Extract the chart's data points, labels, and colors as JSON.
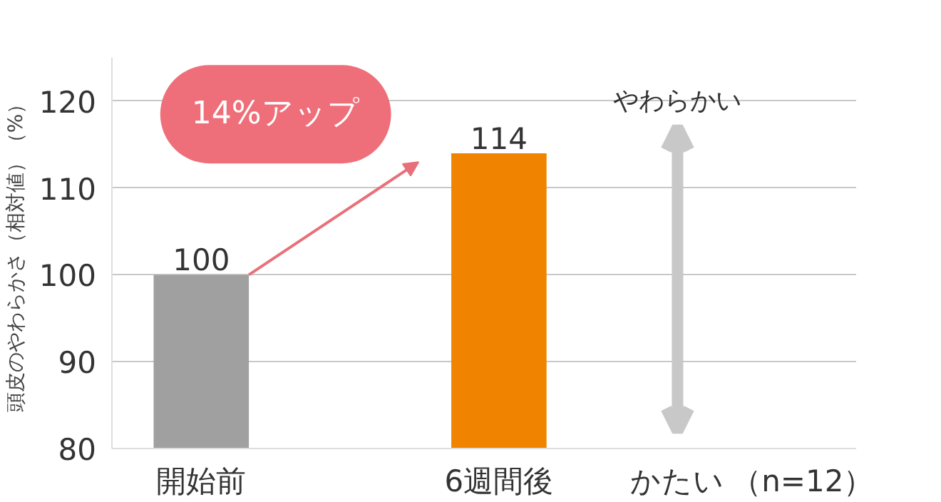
{
  "chart_data": {
    "type": "bar",
    "ylabel": "頭皮のやわらかさ（相対値）（%）",
    "categories": [
      "開始前",
      "6週間後"
    ],
    "values": [
      100,
      114
    ],
    "colors": [
      "#a0a0a0",
      "#f08300"
    ],
    "ylim": [
      80,
      125
    ],
    "yticks": [
      80,
      90,
      100,
      110,
      120
    ],
    "grid": "y",
    "data_labels": true,
    "annotations": [
      "14%アップ",
      "やわらかい",
      "かたい",
      "（n=12）"
    ]
  }
}
